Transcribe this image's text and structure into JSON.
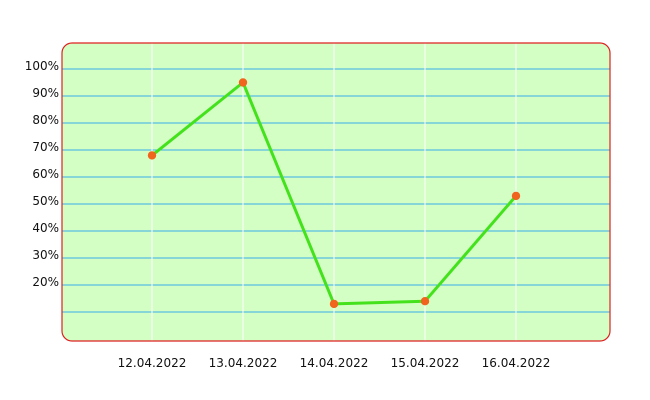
{
  "chart_data": {
    "type": "line",
    "title": "",
    "xlabel": "",
    "ylabel": "",
    "categories": [
      "12.04.2022",
      "13.04.2022",
      "14.04.2022",
      "15.04.2022",
      "16.04.2022"
    ],
    "series": [
      {
        "values": [
          68,
          95,
          13,
          14,
          53
        ]
      }
    ],
    "y_ticks": [
      {
        "value": 10,
        "label": ""
      },
      {
        "value": 20,
        "label": "20%"
      },
      {
        "value": 30,
        "label": "30%"
      },
      {
        "value": 40,
        "label": "40%"
      },
      {
        "value": 50,
        "label": "50%"
      },
      {
        "value": 60,
        "label": "60%"
      },
      {
        "value": 70,
        "label": "70%"
      },
      {
        "value": 80,
        "label": "80%"
      },
      {
        "value": 90,
        "label": "90%"
      },
      {
        "value": 100,
        "label": "100%"
      }
    ],
    "ylim": [
      0,
      105
    ],
    "grid": true,
    "legend": "none",
    "colors": {
      "plot_background": "#d4ffc4",
      "plot_border": "#dd2222",
      "horizontal_grid": "#3aaeea",
      "vertical_grid": "#ffffff",
      "line": "#44e21c",
      "marker": "#f0641e"
    }
  }
}
